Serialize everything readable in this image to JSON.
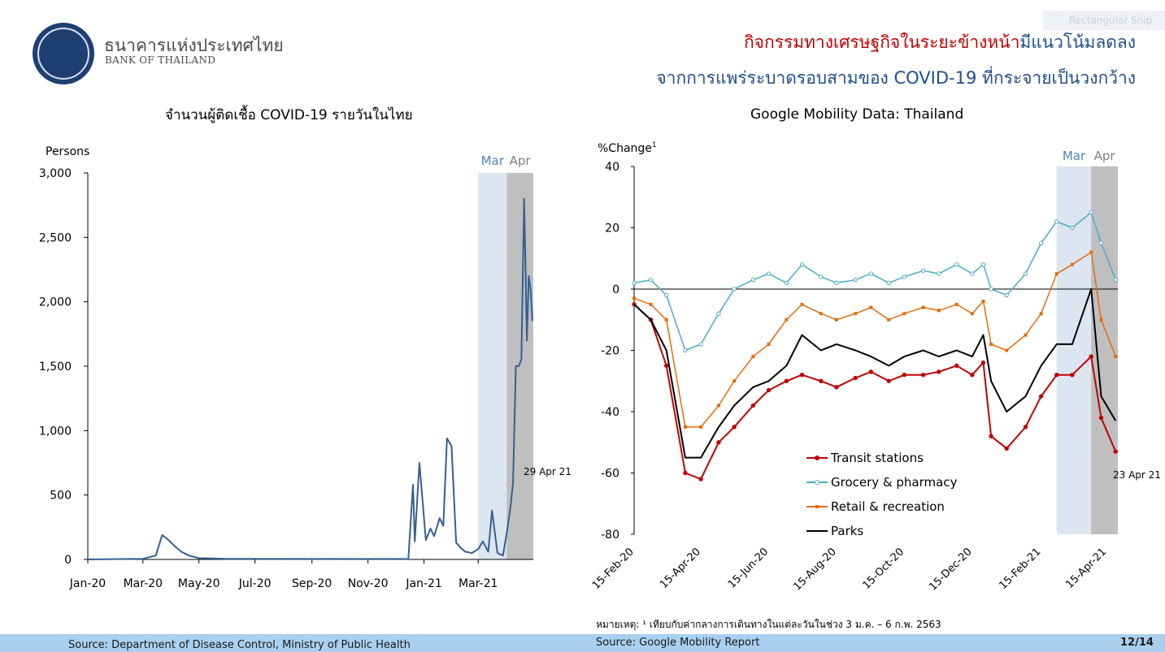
{
  "header": {
    "bank_name_th": "ธนาคารแห่งประเทศไทย",
    "bank_name_en": "BANK OF THAILAND",
    "headline_line1_red": "กิจกรรมทางเศรษฐกิจในระยะข้างหน้า",
    "headline_line1_blue": "มีแนวโน้มลดลง",
    "headline_line2": "จากการแพร่ระบาดรอบสามของ COVID-19 ที่กระจายเป็นวงกว้าง",
    "snip_label": "Rectangular Snip"
  },
  "colors": {
    "mar_shade": "#dce6f1",
    "apr_shade": "#bfbfbf",
    "covid_line": "#365f91",
    "transit": "#c00000",
    "grocery": "#4bacc6",
    "retail": "#e46c0a",
    "parks": "#000000",
    "footer": "#a9d0ef"
  },
  "chart_data": [
    {
      "type": "line",
      "title": "จำนวนผู้ติดเชื้อ COVID-19 รายวันในไทย",
      "ylabel": "Persons",
      "ylim": [
        0,
        3000
      ],
      "yticks": [
        "0",
        "500",
        "1,000",
        "1,500",
        "2,000",
        "2,500",
        "3,000"
      ],
      "xlabels": [
        "Jan-20",
        "Mar-20",
        "May-20",
        "Jul-20",
        "Sep-20",
        "Nov-20",
        "Jan-21",
        "Mar-21"
      ],
      "shade_labels": [
        "Mar",
        "Apr"
      ],
      "end_label": "29 Apr 21",
      "x": [
        "2020-01-01",
        "2020-03-01",
        "2020-03-15",
        "2020-03-22",
        "2020-03-29",
        "2020-04-05",
        "2020-04-12",
        "2020-04-20",
        "2020-05-01",
        "2020-06-01",
        "2020-09-01",
        "2020-12-15",
        "2020-12-20",
        "2020-12-22",
        "2020-12-27",
        "2021-01-03",
        "2021-01-08",
        "2021-01-12",
        "2021-01-18",
        "2021-01-22",
        "2021-01-26",
        "2021-01-31",
        "2021-02-05",
        "2021-02-10",
        "2021-02-15",
        "2021-02-22",
        "2021-03-01",
        "2021-03-06",
        "2021-03-12",
        "2021-03-16",
        "2021-03-22",
        "2021-03-28",
        "2021-04-01",
        "2021-04-05",
        "2021-04-08",
        "2021-04-11",
        "2021-04-14",
        "2021-04-17",
        "2021-04-20",
        "2021-04-23",
        "2021-04-25",
        "2021-04-27",
        "2021-04-29"
      ],
      "series": [
        {
          "values": [
            0,
            5,
            30,
            190,
            150,
            100,
            60,
            30,
            10,
            5,
            4,
            5,
            580,
            140,
            750,
            150,
            240,
            180,
            320,
            260,
            940,
            880,
            130,
            90,
            60,
            50,
            80,
            140,
            60,
            380,
            50,
            30,
            200,
            400,
            600,
            1500,
            1500,
            1550,
            2800,
            1700,
            2200,
            2100,
            1850
          ]
        }
      ]
    },
    {
      "type": "line",
      "title": "Google Mobility Data: Thailand",
      "ylabel": "%Change",
      "ylabel_sup": "1",
      "ylim": [
        -80,
        40
      ],
      "yticks": [
        "-80",
        "-60",
        "-40",
        "-20",
        "0",
        "20",
        "40"
      ],
      "xlabels": [
        "15-Feb-20",
        "15-Apr-20",
        "15-Jun-20",
        "15-Aug-20",
        "15-Oct-20",
        "15-Dec-20",
        "15-Feb-21",
        "15-Apr-21"
      ],
      "shade_labels": [
        "Mar",
        "Apr"
      ],
      "end_label": "23 Apr 21",
      "x": [
        "2020-02-15",
        "2020-03-01",
        "2020-03-15",
        "2020-04-01",
        "2020-04-15",
        "2020-05-01",
        "2020-05-15",
        "2020-06-01",
        "2020-06-15",
        "2020-07-01",
        "2020-07-15",
        "2020-08-01",
        "2020-08-15",
        "2020-09-01",
        "2020-09-15",
        "2020-10-01",
        "2020-10-15",
        "2020-11-01",
        "2020-11-15",
        "2020-12-01",
        "2020-12-15",
        "2020-12-25",
        "2021-01-01",
        "2021-01-15",
        "2021-02-01",
        "2021-02-15",
        "2021-03-01",
        "2021-03-15",
        "2021-04-01",
        "2021-04-10",
        "2021-04-23"
      ],
      "series": [
        {
          "name": "Transit stations",
          "values": [
            -5,
            -10,
            -25,
            -60,
            -62,
            -50,
            -45,
            -38,
            -33,
            -30,
            -28,
            -30,
            -32,
            -29,
            -27,
            -30,
            -28,
            -28,
            -27,
            -25,
            -28,
            -24,
            -48,
            -52,
            -45,
            -35,
            -28,
            -28,
            -22,
            -42,
            -53
          ]
        },
        {
          "name": "Grocery & pharmacy",
          "values": [
            2,
            3,
            -2,
            -20,
            -18,
            -8,
            0,
            3,
            5,
            2,
            8,
            4,
            2,
            3,
            5,
            2,
            4,
            6,
            5,
            8,
            5,
            8,
            0,
            -2,
            5,
            15,
            22,
            20,
            25,
            15,
            3
          ]
        },
        {
          "name": "Retail & recreation",
          "values": [
            -3,
            -5,
            -10,
            -45,
            -45,
            -38,
            -30,
            -22,
            -18,
            -10,
            -5,
            -8,
            -10,
            -8,
            -6,
            -10,
            -8,
            -6,
            -7,
            -5,
            -8,
            -4,
            -18,
            -20,
            -15,
            -8,
            5,
            8,
            12,
            -10,
            -22
          ]
        },
        {
          "name": "Parks",
          "values": [
            -5,
            -10,
            -20,
            -55,
            -55,
            -45,
            -38,
            -32,
            -30,
            -25,
            -15,
            -20,
            -18,
            -20,
            -22,
            -25,
            -22,
            -20,
            -22,
            -20,
            -22,
            -15,
            -30,
            -40,
            -35,
            -25,
            -18,
            -18,
            0,
            -35,
            -43
          ]
        }
      ]
    }
  ],
  "footnote": "หมายเหตุ: ¹ เทียบกับค่ากลางการเดินทางในแต่ละวันในช่วง 3 ม.ค. –  6 ก.พ. 2563",
  "footer": {
    "source_left": "Source: Department of Disease Control, Ministry of Public Health",
    "source_right": "Source: Google Mobility Report",
    "page": "12/14"
  }
}
